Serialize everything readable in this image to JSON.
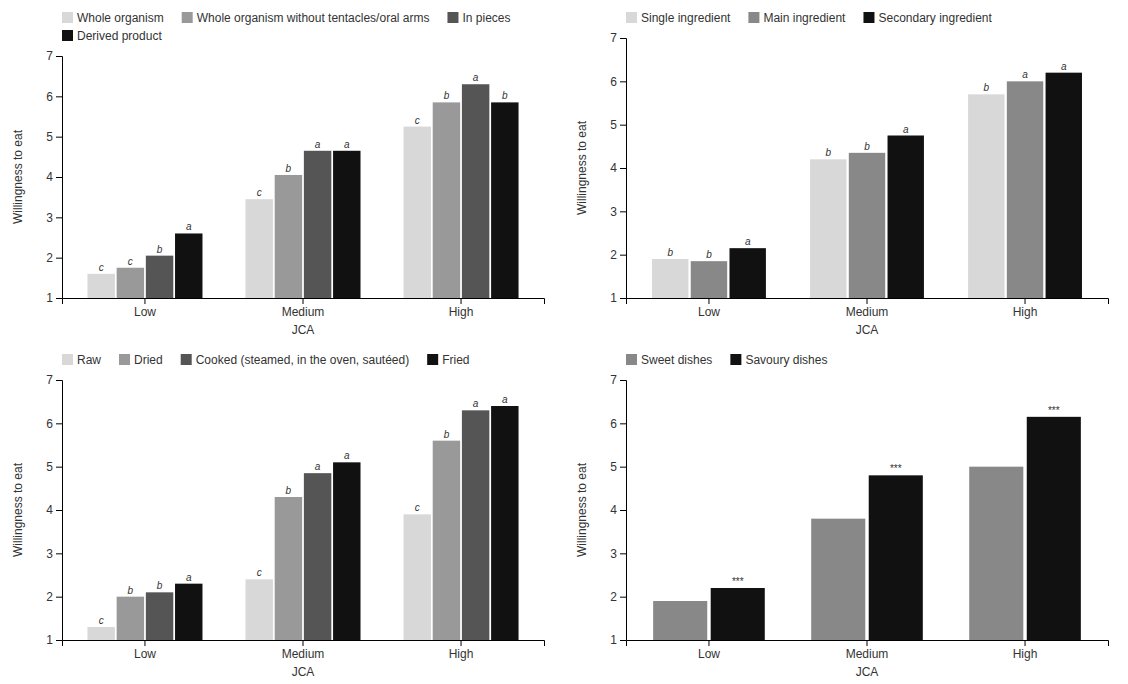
{
  "chart_data": [
    {
      "type": "bar",
      "xlabel": "JCA",
      "ylabel": "Willingness to eat",
      "categories": [
        "Low",
        "Medium",
        "High"
      ],
      "series": [
        {
          "name": "Whole organism",
          "color": "#d8d8d8",
          "values": [
            1.6,
            3.45,
            5.25
          ]
        },
        {
          "name": "Whole organism without tentacles/oral arms",
          "color": "#999999",
          "values": [
            1.75,
            4.05,
            5.85
          ]
        },
        {
          "name": "In pieces",
          "color": "#555555",
          "values": [
            2.05,
            4.65,
            6.3
          ]
        },
        {
          "name": "Derived product",
          "color": "#111111",
          "values": [
            2.6,
            4.65,
            5.85
          ]
        }
      ],
      "annotations": [
        {
          "text": "c",
          "category": "Low",
          "series": "Whole organism"
        },
        {
          "text": "c",
          "category": "Low",
          "series": "Whole organism without tentacles/oral arms"
        },
        {
          "text": "b",
          "category": "Low",
          "series": "In pieces"
        },
        {
          "text": "a",
          "category": "Low",
          "series": "Derived product"
        },
        {
          "text": "c",
          "category": "Medium",
          "series": "Whole organism"
        },
        {
          "text": "b",
          "category": "Medium",
          "series": "Whole organism without tentacles/oral arms"
        },
        {
          "text": "a",
          "category": "Medium",
          "series": "In pieces"
        },
        {
          "text": "a",
          "category": "Medium",
          "series": "Derived product"
        },
        {
          "text": "c",
          "category": "High",
          "series": "Whole organism"
        },
        {
          "text": "b",
          "category": "High",
          "series": "Whole organism without tentacles/oral arms"
        },
        {
          "text": "a",
          "category": "High",
          "series": "In pieces"
        },
        {
          "text": "b",
          "category": "High",
          "series": "Derived product"
        }
      ],
      "ylim": [
        1,
        7
      ],
      "yticks": [
        1,
        2,
        3,
        4,
        5,
        6,
        7
      ],
      "grid": false,
      "legend": "top-left"
    },
    {
      "type": "bar",
      "xlabel": "JCA",
      "ylabel": "Willingness to eat",
      "categories": [
        "Low",
        "Medium",
        "High"
      ],
      "series": [
        {
          "name": "Single ingredient",
          "color": "#d8d8d8",
          "values": [
            1.9,
            4.2,
            5.7
          ]
        },
        {
          "name": "Main ingredient",
          "color": "#888888",
          "values": [
            1.85,
            4.35,
            6.0
          ]
        },
        {
          "name": "Secondary ingredient",
          "color": "#111111",
          "values": [
            2.15,
            4.75,
            6.2
          ]
        }
      ],
      "annotations": [
        {
          "text": "b",
          "category": "Low",
          "series": "Single ingredient"
        },
        {
          "text": "b",
          "category": "Low",
          "series": "Main ingredient"
        },
        {
          "text": "a",
          "category": "Low",
          "series": "Secondary ingredient"
        },
        {
          "text": "b",
          "category": "Medium",
          "series": "Single ingredient"
        },
        {
          "text": "b",
          "category": "Medium",
          "series": "Main ingredient"
        },
        {
          "text": "a",
          "category": "Medium",
          "series": "Secondary ingredient"
        },
        {
          "text": "b",
          "category": "High",
          "series": "Single ingredient"
        },
        {
          "text": "a",
          "category": "High",
          "series": "Main ingredient"
        },
        {
          "text": "a",
          "category": "High",
          "series": "Secondary ingredient"
        }
      ],
      "ylim": [
        1,
        7
      ],
      "yticks": [
        1,
        2,
        3,
        4,
        5,
        6,
        7
      ],
      "grid": false,
      "legend": "top-left"
    },
    {
      "type": "bar",
      "xlabel": "JCA",
      "ylabel": "Willingness to eat",
      "categories": [
        "Low",
        "Medium",
        "High"
      ],
      "series": [
        {
          "name": "Raw",
          "color": "#d8d8d8",
          "values": [
            1.3,
            2.4,
            3.9
          ]
        },
        {
          "name": "Dried",
          "color": "#999999",
          "values": [
            2.0,
            4.3,
            5.6
          ]
        },
        {
          "name": "Cooked (steamed, in the oven, sautéed)",
          "color": "#555555",
          "values": [
            2.1,
            4.85,
            6.3
          ]
        },
        {
          "name": "Fried",
          "color": "#111111",
          "values": [
            2.3,
            5.1,
            6.4
          ]
        }
      ],
      "annotations": [
        {
          "text": "c",
          "category": "Low",
          "series": "Raw"
        },
        {
          "text": "b",
          "category": "Low",
          "series": "Dried"
        },
        {
          "text": "b",
          "category": "Low",
          "series": "Cooked (steamed, in the oven, sautéed)"
        },
        {
          "text": "a",
          "category": "Low",
          "series": "Fried"
        },
        {
          "text": "c",
          "category": "Medium",
          "series": "Raw"
        },
        {
          "text": "b",
          "category": "Medium",
          "series": "Dried"
        },
        {
          "text": "a",
          "category": "Medium",
          "series": "Cooked (steamed, in the oven, sautéed)"
        },
        {
          "text": "a",
          "category": "Medium",
          "series": "Fried"
        },
        {
          "text": "c",
          "category": "High",
          "series": "Raw"
        },
        {
          "text": "b",
          "category": "High",
          "series": "Dried"
        },
        {
          "text": "a",
          "category": "High",
          "series": "Cooked (steamed, in the oven, sautéed)"
        },
        {
          "text": "a",
          "category": "High",
          "series": "Fried"
        }
      ],
      "ylim": [
        1,
        7
      ],
      "yticks": [
        1,
        2,
        3,
        4,
        5,
        6,
        7
      ],
      "grid": false,
      "legend": "top-left"
    },
    {
      "type": "bar",
      "xlabel": "JCA",
      "ylabel": "Willingness to eat",
      "categories": [
        "Low",
        "Medium",
        "High"
      ],
      "series": [
        {
          "name": "Sweet dishes",
          "color": "#888888",
          "values": [
            1.9,
            3.8,
            5.0
          ]
        },
        {
          "name": "Savoury dishes",
          "color": "#111111",
          "values": [
            2.2,
            4.8,
            6.15
          ]
        }
      ],
      "annotations": [
        {
          "text": "***",
          "category": "Low",
          "series": "Savoury dishes"
        },
        {
          "text": "***",
          "category": "Medium",
          "series": "Savoury dishes"
        },
        {
          "text": "***",
          "category": "High",
          "series": "Savoury dishes"
        }
      ],
      "ylim": [
        1,
        7
      ],
      "yticks": [
        1,
        2,
        3,
        4,
        5,
        6,
        7
      ],
      "grid": false,
      "legend": "top-left"
    }
  ]
}
